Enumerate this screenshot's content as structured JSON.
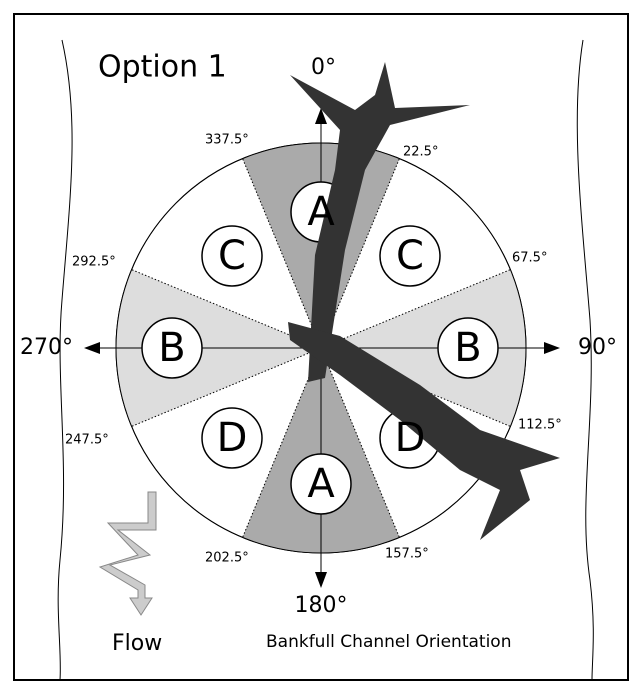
{
  "title": "Option 1",
  "compass": {
    "north": "0°",
    "east": "90°",
    "south": "180°",
    "west": "270°"
  },
  "angle_labels": {
    "a337": "337.5°",
    "a22": "22.5°",
    "a67": "67.5°",
    "a292": "292.5°",
    "a112": "112.5°",
    "a247": "247.5°",
    "a202": "202.5°",
    "a157": "157.5°"
  },
  "zones": {
    "top": "A",
    "bottom": "A",
    "upper_left": "C",
    "upper_right": "C",
    "left": "B",
    "right": "B",
    "lower_left": "D",
    "lower_right": "D"
  },
  "flow_label": "Flow",
  "caption": "Bankfull Channel Orientation"
}
